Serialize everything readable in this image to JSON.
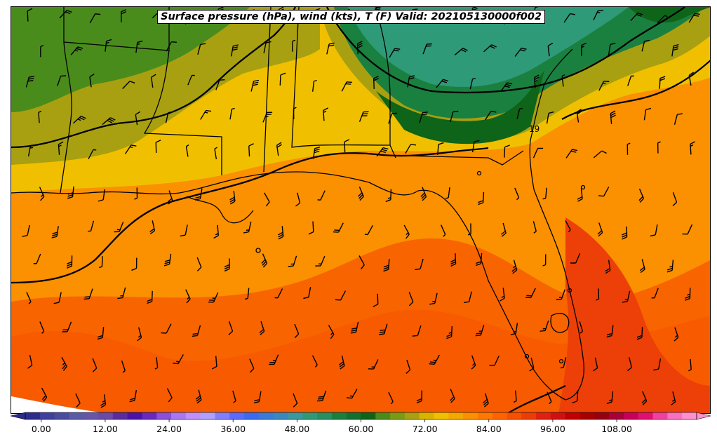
{
  "title": "Surface pressure (hPa), wind (kts), T (F) Valid: 202105130000f002",
  "map_annotation": "19",
  "colorbar": {
    "tick_labels": [
      "0.00",
      "12.00",
      "24.00",
      "36.00",
      "48.00",
      "60.00",
      "72.00",
      "84.00",
      "96.00",
      "108.00"
    ],
    "tick_values": [
      0,
      12,
      24,
      36,
      48,
      60,
      72,
      84,
      96,
      108
    ],
    "range": [
      -3,
      123
    ],
    "step": 3,
    "colors": [
      "#2b2b8c",
      "#3f3f9c",
      "#4b4b9f",
      "#5a5aa6",
      "#6656a8",
      "#6a4aa8",
      "#5a2ca0",
      "#4a14a8",
      "#6a28c0",
      "#8a50d8",
      "#a878f0",
      "#c090f8",
      "#b0a0ff",
      "#8080ff",
      "#5a6aff",
      "#3a6af0",
      "#3a7ad8",
      "#3a88c0",
      "#3a98a0",
      "#2e9a78",
      "#269060",
      "#1a8040",
      "#147030",
      "#0e6418",
      "#4a8c1c",
      "#7a9c14",
      "#a8a010",
      "#d8b400",
      "#f0c000",
      "#f5a800",
      "#fb9000",
      "#ff7800",
      "#fd6400",
      "#f85000",
      "#ec3c08",
      "#e02010",
      "#d01010",
      "#c00000",
      "#a80000",
      "#960010",
      "#a8003a",
      "#c8005a",
      "#e01070",
      "#f040a0",
      "#f870c0",
      "#ff90d0"
    ]
  }
}
